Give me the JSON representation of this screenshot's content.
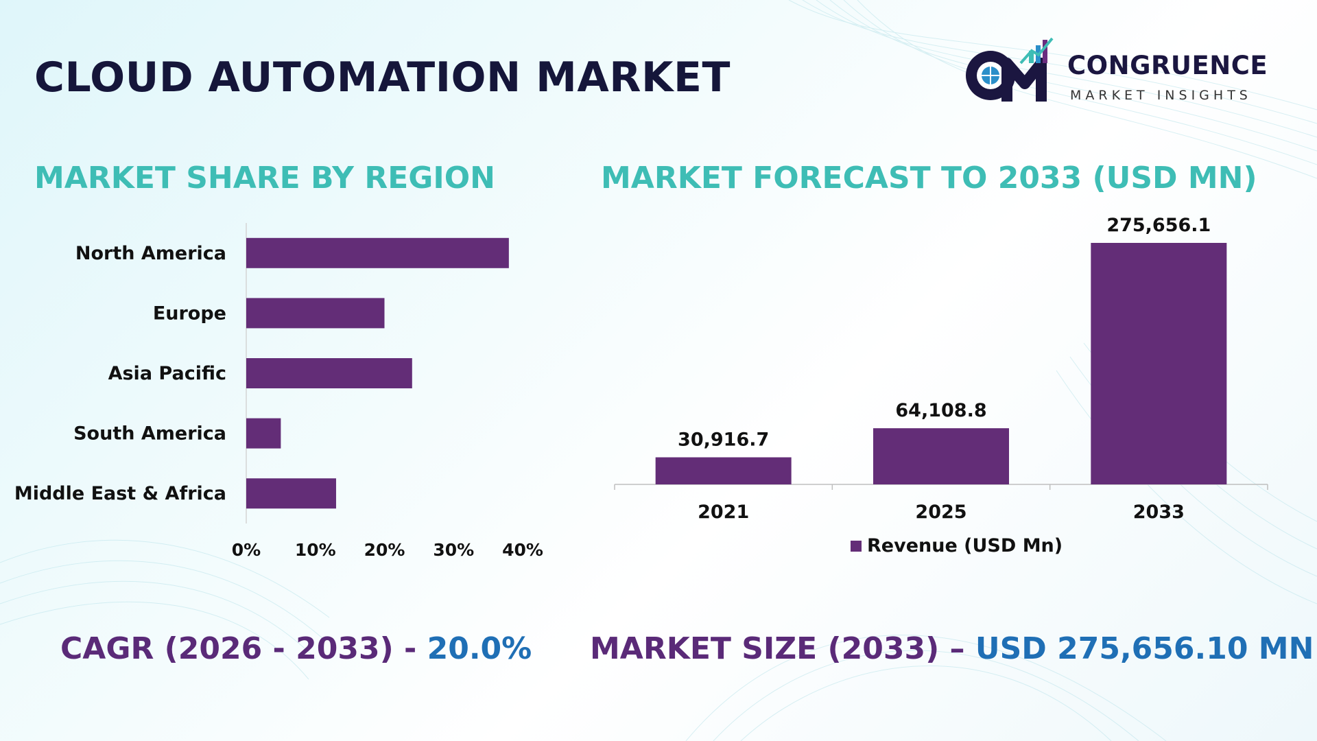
{
  "title": "CLOUD AUTOMATION MARKET",
  "logo": {
    "name": "CONGRUENCE",
    "tagline": "MARKET INSIGHTS"
  },
  "colors": {
    "bar": "#632d77",
    "teal_heading": "#3ebdb5",
    "navy": "#15163a",
    "purple_text": "#5a2a78",
    "blue_text": "#1f6fb5"
  },
  "sections": {
    "share_title": "MARKET SHARE BY REGION",
    "forecast_title": "MARKET FORECAST TO 2033 (USD MN)"
  },
  "chart_data": [
    {
      "type": "bar",
      "orientation": "horizontal",
      "categories": [
        "North America",
        "Europe",
        "Asia Pacific",
        "South America",
        "Middle East & Africa"
      ],
      "values": [
        38,
        20,
        24,
        5,
        13
      ],
      "unit": "%",
      "xlim": [
        0,
        40
      ],
      "xticks": [
        "0%",
        "10%",
        "20%",
        "30%",
        "40%"
      ],
      "title": "MARKET SHARE BY REGION"
    },
    {
      "type": "bar",
      "orientation": "vertical",
      "categories": [
        "2021",
        "2025",
        "2033"
      ],
      "series": [
        {
          "name": "Revenue (USD Mn)",
          "values": [
            30916.7,
            64108.8,
            275656.1
          ]
        }
      ],
      "data_labels": [
        "30,916.7",
        "64,108.8",
        "275,656.1"
      ],
      "title": "MARKET FORECAST TO 2033 (USD MN)",
      "legend": "bottom"
    }
  ],
  "footer": {
    "cagr_label": "CAGR (2026 - 2033) - ",
    "cagr_value": "20.0%",
    "size_label": "MARKET SIZE (2033) – ",
    "size_value": "USD 275,656.10 MN"
  }
}
